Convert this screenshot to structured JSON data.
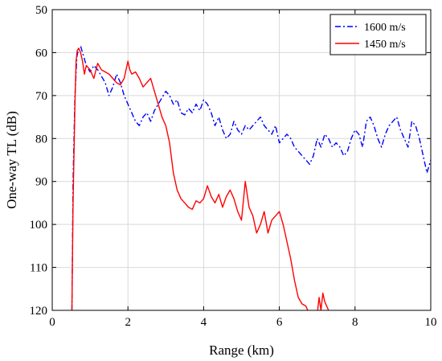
{
  "chart_data": {
    "type": "line",
    "xlabel": "Range (km)",
    "ylabel": "One-way TL (dB)",
    "xlim": [
      0,
      10
    ],
    "ylim": [
      120,
      50
    ],
    "y_axis_inverted": true,
    "grid": true,
    "legend_position": "top-right",
    "x_ticks": [
      "0",
      "2",
      "4",
      "6",
      "8",
      "10"
    ],
    "y_ticks": [
      "50",
      "60",
      "70",
      "80",
      "90",
      "100",
      "110",
      "120"
    ],
    "series": [
      {
        "name": "1600 m/s",
        "color": "#0000ff",
        "line_style": "dash-dot",
        "x": [
          0.52,
          0.55,
          0.6,
          0.65,
          0.7,
          0.75,
          0.8,
          0.9,
          1.0,
          1.1,
          1.2,
          1.3,
          1.4,
          1.5,
          1.6,
          1.7,
          1.8,
          1.9,
          2.0,
          2.1,
          2.2,
          2.3,
          2.4,
          2.5,
          2.6,
          2.7,
          2.8,
          2.9,
          3.0,
          3.1,
          3.2,
          3.3,
          3.4,
          3.5,
          3.6,
          3.7,
          3.8,
          3.9,
          4.0,
          4.1,
          4.2,
          4.3,
          4.4,
          4.5,
          4.6,
          4.7,
          4.8,
          4.9,
          5.0,
          5.1,
          5.2,
          5.3,
          5.4,
          5.5,
          5.6,
          5.7,
          5.8,
          5.9,
          6.0,
          6.1,
          6.2,
          6.3,
          6.4,
          6.5,
          6.6,
          6.7,
          6.8,
          6.9,
          7.0,
          7.1,
          7.2,
          7.3,
          7.4,
          7.5,
          7.6,
          7.7,
          7.8,
          7.9,
          8.0,
          8.1,
          8.2,
          8.3,
          8.4,
          8.5,
          8.6,
          8.7,
          8.8,
          8.9,
          9.0,
          9.1,
          9.2,
          9.3,
          9.4,
          9.5,
          9.6,
          9.7,
          9.8,
          9.9,
          10.0
        ],
        "y": [
          120,
          90,
          70,
          61,
          59,
          58.5,
          60,
          63,
          64.5,
          63,
          64,
          65.5,
          67,
          70,
          68,
          65,
          67,
          70,
          72,
          74,
          76,
          77,
          75,
          74,
          76,
          73.5,
          72,
          70.5,
          69,
          70,
          72,
          71,
          74,
          74.5,
          73,
          74,
          72,
          73.5,
          71,
          72,
          74,
          77,
          75,
          78,
          80,
          79,
          76,
          78,
          79,
          77,
          78,
          77,
          76,
          75,
          77,
          78,
          79,
          77,
          81,
          80,
          79,
          80,
          82,
          83,
          84,
          85,
          86,
          84,
          80,
          82,
          79,
          80,
          82,
          81,
          82,
          84,
          83,
          80,
          78,
          79,
          82,
          76,
          75,
          77,
          80,
          82,
          79,
          77,
          76,
          75,
          78,
          80,
          82,
          76,
          77,
          80,
          84,
          88,
          85
        ]
      },
      {
        "name": "1450 m/s",
        "color": "#ff0000",
        "line_style": "solid",
        "x": [
          0.52,
          0.55,
          0.6,
          0.63,
          0.66,
          0.7,
          0.75,
          0.8,
          0.85,
          0.9,
          1.0,
          1.1,
          1.2,
          1.3,
          1.4,
          1.5,
          1.6,
          1.7,
          1.8,
          1.9,
          2.0,
          2.05,
          2.1,
          2.2,
          2.3,
          2.4,
          2.5,
          2.6,
          2.7,
          2.8,
          2.9,
          3.0,
          3.1,
          3.2,
          3.3,
          3.4,
          3.5,
          3.6,
          3.7,
          3.8,
          3.9,
          4.0,
          4.1,
          4.2,
          4.3,
          4.4,
          4.5,
          4.6,
          4.7,
          4.8,
          4.9,
          5.0,
          5.1,
          5.2,
          5.3,
          5.4,
          5.5,
          5.6,
          5.7,
          5.8,
          5.9,
          6.0,
          6.1,
          6.2,
          6.3,
          6.4,
          6.5,
          6.6,
          6.7,
          6.8,
          6.9,
          7.0,
          7.05,
          7.1,
          7.15,
          7.2,
          7.25,
          7.3
        ],
        "y": [
          120,
          95,
          72,
          62,
          59.5,
          59,
          60,
          62,
          65,
          63,
          64,
          66,
          62.5,
          64,
          64.5,
          65,
          66,
          67,
          67.5,
          66,
          62,
          64,
          65,
          64.5,
          66,
          68,
          67,
          66,
          69,
          72,
          75,
          77,
          81,
          88,
          92,
          94,
          95,
          96,
          96.5,
          94.5,
          95,
          94,
          91,
          93.5,
          95,
          93,
          96,
          93.5,
          92,
          94,
          97,
          99,
          90,
          96,
          98,
          102,
          100,
          97,
          102,
          99,
          98,
          97,
          100,
          104,
          108,
          113,
          117,
          118.5,
          119,
          121,
          122,
          121,
          117,
          120,
          116,
          118,
          119,
          120
        ]
      }
    ]
  }
}
